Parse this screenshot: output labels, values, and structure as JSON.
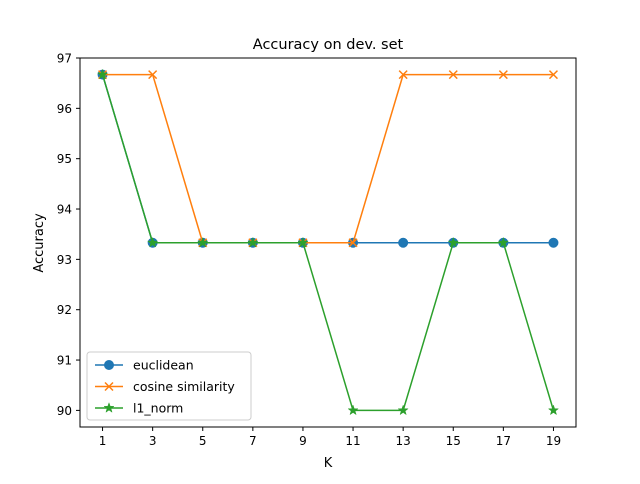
{
  "chart_data": {
    "type": "line",
    "title": "Accuracy on dev. set",
    "xlabel": "K",
    "ylabel": "Accuracy",
    "x": [
      1,
      3,
      5,
      7,
      9,
      11,
      13,
      15,
      17,
      19
    ],
    "xticks": [
      1,
      3,
      5,
      7,
      9,
      11,
      13,
      15,
      17,
      19
    ],
    "yticks": [
      90,
      91,
      92,
      93,
      94,
      95,
      96,
      97
    ],
    "xlim": [
      0.1,
      19.9
    ],
    "ylim": [
      89.67,
      97.0
    ],
    "grid": false,
    "legend_position": "lower-left",
    "series": [
      {
        "name": "euclidean",
        "color": "#1f77b4",
        "marker": "circle",
        "values": [
          96.67,
          93.33,
          93.33,
          93.33,
          93.33,
          93.33,
          93.33,
          93.33,
          93.33,
          93.33
        ]
      },
      {
        "name": "cosine similarity",
        "color": "#ff7f0e",
        "marker": "x",
        "values": [
          96.67,
          96.67,
          93.33,
          93.33,
          93.33,
          93.33,
          96.67,
          96.67,
          96.67,
          96.67
        ]
      },
      {
        "name": "l1_norm",
        "color": "#2ca02c",
        "marker": "star",
        "values": [
          96.67,
          93.33,
          93.33,
          93.33,
          93.33,
          90.0,
          90.0,
          93.33,
          93.33,
          90.0
        ]
      }
    ]
  }
}
